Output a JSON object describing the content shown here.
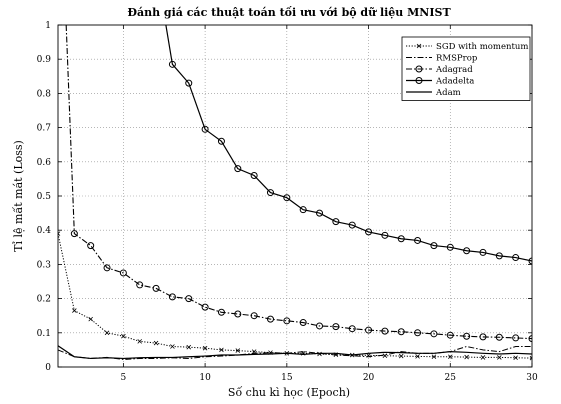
{
  "chart_data": {
    "type": "line",
    "title": "Đánh giá các thuật toán tối ưu với bộ dữ liệu MNIST",
    "xlabel": "Số chu kì học (Epoch)",
    "ylabel": "Tỉ lệ mất mát (Loss)",
    "xlim": [
      1,
      30
    ],
    "ylim": [
      0,
      1
    ],
    "xticks": [
      5,
      10,
      15,
      20,
      25,
      30
    ],
    "yticks": [
      0,
      0.1,
      0.2,
      0.3,
      0.4,
      0.5,
      0.6,
      0.7,
      0.8,
      0.9,
      1
    ],
    "grid": "dotted",
    "legend_position": "top-right",
    "colors": {
      "line": "#000000",
      "grid": "#8c8c8c",
      "background": "#ffffff"
    },
    "series": [
      {
        "name": "SGD with momentum",
        "style": "dotted-x",
        "x": [
          1,
          2,
          3,
          4,
          5,
          6,
          7,
          8,
          9,
          10,
          11,
          12,
          13,
          14,
          15,
          16,
          17,
          18,
          19,
          20,
          21,
          22,
          23,
          24,
          25,
          26,
          27,
          28,
          29,
          30
        ],
        "values": [
          0.39,
          0.165,
          0.14,
          0.1,
          0.09,
          0.075,
          0.07,
          0.06,
          0.058,
          0.055,
          0.05,
          0.048,
          0.045,
          0.042,
          0.04,
          0.04,
          0.038,
          0.036,
          0.035,
          0.034,
          0.033,
          0.032,
          0.031,
          0.03,
          0.03,
          0.029,
          0.028,
          0.028,
          0.027,
          0.026
        ]
      },
      {
        "name": "RMSProp",
        "style": "dash-dot",
        "x": [
          1,
          2,
          3,
          4,
          5,
          6,
          7,
          8,
          9,
          10,
          11,
          12,
          13,
          14,
          15,
          16,
          17,
          18,
          19,
          20,
          21,
          22,
          23,
          24,
          25,
          26,
          27,
          28,
          29,
          30
        ],
        "values": [
          0.05,
          0.03,
          0.025,
          0.028,
          0.022,
          0.025,
          0.025,
          0.027,
          0.025,
          0.03,
          0.032,
          0.035,
          0.04,
          0.042,
          0.04,
          0.045,
          0.04,
          0.035,
          0.033,
          0.03,
          0.035,
          0.045,
          0.04,
          0.04,
          0.045,
          0.06,
          0.05,
          0.045,
          0.06,
          0.06
        ]
      },
      {
        "name": "Adagrad",
        "style": "dash-dot-circle",
        "x": [
          1.5,
          2,
          3,
          4,
          5,
          6,
          7,
          8,
          9,
          10,
          11,
          12,
          13,
          14,
          15,
          16,
          17,
          18,
          19,
          20,
          21,
          22,
          23,
          24,
          25,
          26,
          27,
          28,
          29,
          30
        ],
        "values": [
          1.0,
          0.39,
          0.355,
          0.29,
          0.275,
          0.24,
          0.23,
          0.205,
          0.2,
          0.175,
          0.16,
          0.155,
          0.15,
          0.14,
          0.135,
          0.13,
          0.12,
          0.118,
          0.112,
          0.108,
          0.105,
          0.103,
          0.1,
          0.097,
          0.093,
          0.09,
          0.088,
          0.087,
          0.085,
          0.083
        ]
      },
      {
        "name": "Adadelta",
        "style": "solid-circle",
        "x": [
          7.6,
          8,
          9,
          10,
          11,
          12,
          13,
          14,
          15,
          16,
          17,
          18,
          19,
          20,
          21,
          22,
          23,
          24,
          25,
          26,
          27,
          28,
          29,
          30
        ],
        "values": [
          1.0,
          0.885,
          0.83,
          0.695,
          0.66,
          0.58,
          0.56,
          0.51,
          0.495,
          0.46,
          0.45,
          0.425,
          0.415,
          0.395,
          0.385,
          0.375,
          0.37,
          0.355,
          0.35,
          0.34,
          0.335,
          0.325,
          0.32,
          0.31
        ]
      },
      {
        "name": "Adam",
        "style": "solid",
        "x": [
          1,
          2,
          3,
          4,
          5,
          6,
          7,
          8,
          9,
          10,
          11,
          12,
          13,
          14,
          15,
          16,
          17,
          18,
          19,
          20,
          21,
          22,
          23,
          24,
          25,
          26,
          27,
          28,
          29,
          30
        ],
        "values": [
          0.062,
          0.03,
          0.025,
          0.027,
          0.025,
          0.027,
          0.028,
          0.028,
          0.03,
          0.032,
          0.035,
          0.035,
          0.037,
          0.038,
          0.04,
          0.037,
          0.04,
          0.04,
          0.035,
          0.04,
          0.043,
          0.042,
          0.04,
          0.04,
          0.045,
          0.043,
          0.04,
          0.038,
          0.04,
          0.038
        ]
      }
    ]
  }
}
